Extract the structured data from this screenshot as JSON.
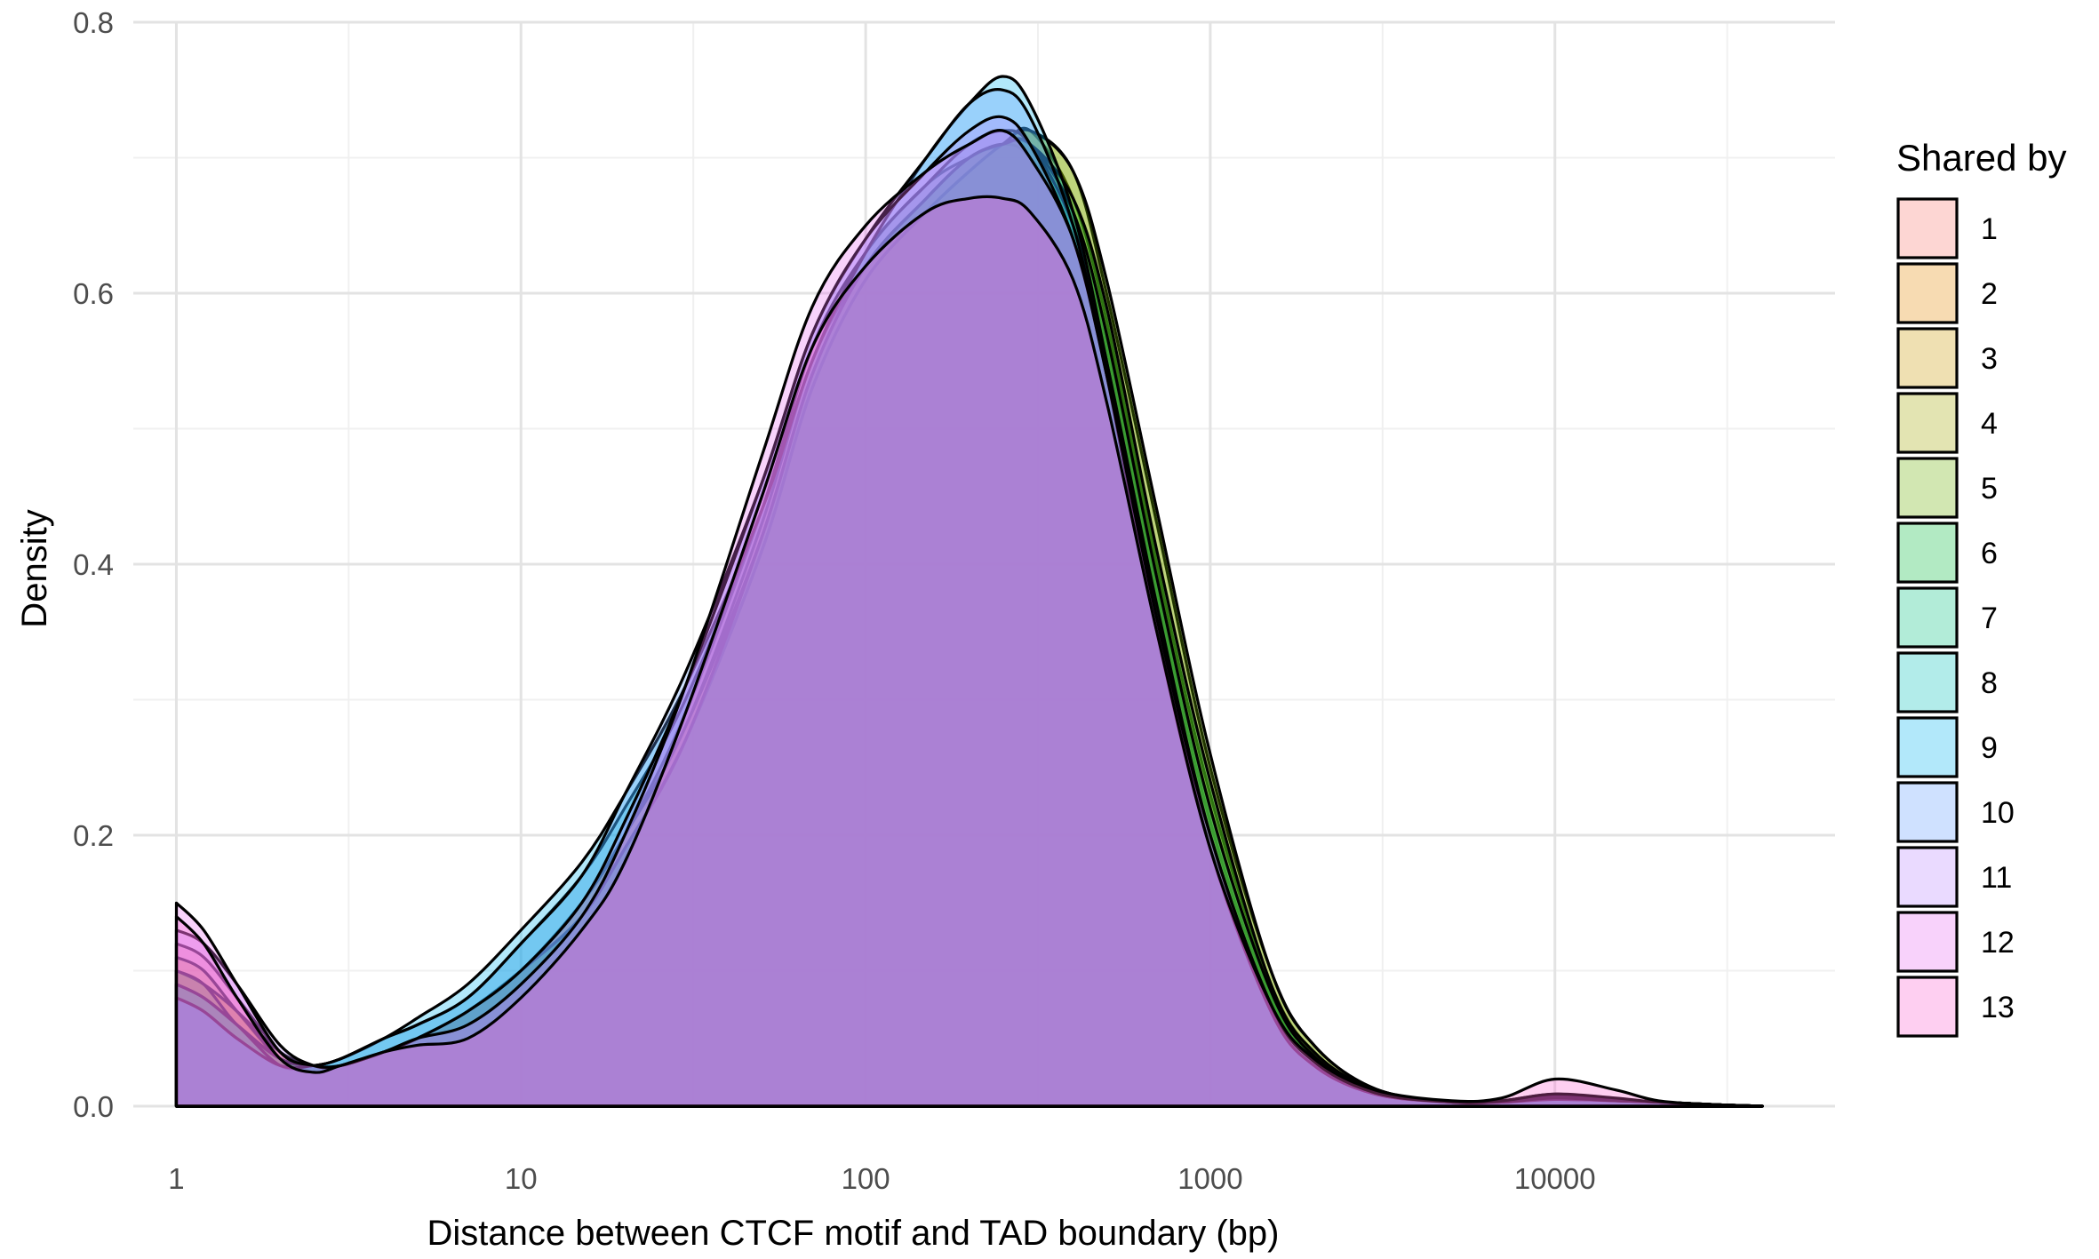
{
  "chart_data": {
    "type": "area",
    "subtype": "density",
    "xlabel": "Distance between CTCF motif and TAD boundary (bp)",
    "ylabel": "Density",
    "x_scale": "log10",
    "xlim": [
      0.75,
      65000
    ],
    "ylim": [
      0,
      0.8
    ],
    "x_ticks": [
      1,
      10,
      100,
      1000,
      10000
    ],
    "x_tick_labels": [
      "1",
      "10",
      "100",
      "1000",
      "10000"
    ],
    "y_ticks": [
      0.0,
      0.2,
      0.4,
      0.6,
      0.8
    ],
    "y_tick_labels": [
      "0.0",
      "0.2",
      "0.4",
      "0.6",
      "0.8"
    ],
    "grid": true,
    "fill_alpha": 0.3,
    "outline_color": "#000000",
    "legend": {
      "title": "Shared by",
      "position": "right"
    },
    "series": [
      {
        "name": "1",
        "color": "#F8766D",
        "x": [
          1,
          1.2,
          1.5,
          2,
          2.5,
          3,
          4,
          5,
          7,
          10,
          15,
          20,
          30,
          50,
          70,
          100,
          150,
          200,
          250,
          300,
          400,
          500,
          700,
          1000,
          1500,
          2000,
          3000,
          5000,
          7000,
          10000,
          15000,
          20000,
          30000,
          40000
        ],
        "y": [
          0.12,
          0.11,
          0.08,
          0.04,
          0.025,
          0.03,
          0.04,
          0.05,
          0.07,
          0.1,
          0.15,
          0.2,
          0.29,
          0.44,
          0.56,
          0.63,
          0.68,
          0.7,
          0.71,
          0.7,
          0.65,
          0.56,
          0.38,
          0.21,
          0.08,
          0.035,
          0.01,
          0.003,
          0.004,
          0.008,
          0.005,
          0.003,
          0.001,
          0.0
        ]
      },
      {
        "name": "2",
        "color": "#E58700",
        "x": [
          1,
          1.2,
          1.5,
          2,
          2.5,
          3,
          4,
          5,
          7,
          10,
          15,
          20,
          30,
          50,
          70,
          100,
          150,
          200,
          250,
          300,
          400,
          500,
          700,
          1000,
          1500,
          2000,
          3000,
          5000,
          7000,
          10000,
          15000,
          20000,
          30000,
          40000
        ],
        "y": [
          0.1,
          0.09,
          0.07,
          0.04,
          0.03,
          0.03,
          0.04,
          0.05,
          0.07,
          0.1,
          0.15,
          0.2,
          0.28,
          0.43,
          0.55,
          0.62,
          0.67,
          0.7,
          0.71,
          0.71,
          0.66,
          0.57,
          0.39,
          0.22,
          0.085,
          0.037,
          0.011,
          0.003,
          0.004,
          0.009,
          0.005,
          0.003,
          0.001,
          0.0
        ]
      },
      {
        "name": "3",
        "color": "#C99800",
        "x": [
          1,
          1.2,
          1.5,
          2,
          2.5,
          3,
          4,
          5,
          7,
          10,
          15,
          20,
          30,
          50,
          70,
          100,
          150,
          200,
          250,
          300,
          400,
          500,
          700,
          1000,
          1500,
          2000,
          3000,
          5000,
          7000,
          10000,
          15000,
          20000,
          30000,
          40000
        ],
        "y": [
          0.11,
          0.1,
          0.07,
          0.035,
          0.03,
          0.03,
          0.04,
          0.05,
          0.07,
          0.1,
          0.15,
          0.2,
          0.28,
          0.42,
          0.54,
          0.62,
          0.67,
          0.7,
          0.71,
          0.72,
          0.67,
          0.58,
          0.4,
          0.23,
          0.09,
          0.04,
          0.012,
          0.003,
          0.004,
          0.008,
          0.005,
          0.003,
          0.001,
          0.0
        ]
      },
      {
        "name": "4",
        "color": "#A3A500",
        "x": [
          1,
          1.2,
          1.5,
          2,
          2.5,
          3,
          4,
          5,
          7,
          10,
          15,
          20,
          30,
          50,
          70,
          100,
          150,
          200,
          250,
          300,
          400,
          500,
          700,
          1000,
          1500,
          2000,
          3000,
          5000,
          7000,
          10000,
          15000,
          20000,
          30000,
          40000
        ],
        "y": [
          0.1,
          0.09,
          0.07,
          0.035,
          0.03,
          0.03,
          0.04,
          0.05,
          0.07,
          0.1,
          0.14,
          0.19,
          0.27,
          0.41,
          0.53,
          0.61,
          0.66,
          0.69,
          0.71,
          0.72,
          0.69,
          0.6,
          0.43,
          0.25,
          0.1,
          0.045,
          0.013,
          0.003,
          0.004,
          0.007,
          0.005,
          0.003,
          0.001,
          0.0
        ]
      },
      {
        "name": "5",
        "color": "#6BB100",
        "x": [
          1,
          1.2,
          1.5,
          2,
          2.5,
          3,
          4,
          5,
          7,
          10,
          15,
          20,
          30,
          50,
          70,
          100,
          150,
          200,
          250,
          300,
          400,
          500,
          700,
          1000,
          1500,
          2000,
          3000,
          5000,
          7000,
          10000,
          15000,
          20000,
          30000,
          40000
        ],
        "y": [
          0.09,
          0.08,
          0.06,
          0.035,
          0.03,
          0.03,
          0.04,
          0.05,
          0.07,
          0.1,
          0.14,
          0.19,
          0.27,
          0.41,
          0.53,
          0.61,
          0.66,
          0.69,
          0.71,
          0.72,
          0.69,
          0.61,
          0.44,
          0.26,
          0.1,
          0.045,
          0.013,
          0.003,
          0.004,
          0.007,
          0.005,
          0.003,
          0.001,
          0.0
        ]
      },
      {
        "name": "6",
        "color": "#00BA38",
        "x": [
          1,
          1.2,
          1.5,
          2,
          2.5,
          3,
          4,
          5,
          7,
          10,
          15,
          20,
          30,
          50,
          70,
          100,
          150,
          200,
          250,
          300,
          400,
          500,
          700,
          1000,
          1500,
          2000,
          3000,
          5000,
          7000,
          10000,
          15000,
          20000,
          30000,
          40000
        ],
        "y": [
          0.1,
          0.09,
          0.06,
          0.035,
          0.03,
          0.03,
          0.04,
          0.05,
          0.07,
          0.1,
          0.14,
          0.19,
          0.27,
          0.42,
          0.54,
          0.62,
          0.67,
          0.7,
          0.71,
          0.71,
          0.67,
          0.59,
          0.41,
          0.24,
          0.09,
          0.04,
          0.012,
          0.003,
          0.004,
          0.007,
          0.005,
          0.003,
          0.001,
          0.0
        ]
      },
      {
        "name": "7",
        "color": "#00BF7D",
        "x": [
          1,
          1.2,
          1.5,
          2,
          2.5,
          3,
          4,
          5,
          7,
          10,
          15,
          20,
          30,
          50,
          70,
          100,
          150,
          200,
          250,
          300,
          400,
          500,
          700,
          1000,
          1500,
          2000,
          3000,
          5000,
          7000,
          10000,
          15000,
          20000,
          30000,
          40000
        ],
        "y": [
          0.09,
          0.08,
          0.06,
          0.035,
          0.03,
          0.03,
          0.04,
          0.05,
          0.07,
          0.1,
          0.14,
          0.19,
          0.27,
          0.42,
          0.54,
          0.62,
          0.67,
          0.7,
          0.71,
          0.71,
          0.66,
          0.57,
          0.39,
          0.22,
          0.085,
          0.037,
          0.011,
          0.003,
          0.004,
          0.006,
          0.004,
          0.003,
          0.001,
          0.0
        ]
      },
      {
        "name": "8",
        "color": "#00C0B8",
        "x": [
          1,
          1.2,
          1.5,
          2,
          2.5,
          3,
          4,
          5,
          7,
          10,
          15,
          20,
          30,
          50,
          70,
          100,
          150,
          200,
          250,
          300,
          400,
          500,
          700,
          1000,
          1500,
          2000,
          3000,
          5000,
          7000,
          10000,
          15000,
          20000,
          30000,
          40000
        ],
        "y": [
          0.09,
          0.08,
          0.06,
          0.03,
          0.03,
          0.035,
          0.05,
          0.06,
          0.08,
          0.12,
          0.17,
          0.22,
          0.3,
          0.44,
          0.55,
          0.63,
          0.68,
          0.71,
          0.72,
          0.71,
          0.65,
          0.55,
          0.37,
          0.2,
          0.075,
          0.033,
          0.01,
          0.003,
          0.003,
          0.006,
          0.004,
          0.003,
          0.001,
          0.0
        ]
      },
      {
        "name": "9",
        "color": "#00B4EF",
        "x": [
          1,
          1.2,
          1.5,
          2,
          2.5,
          3,
          4,
          5,
          7,
          10,
          15,
          20,
          30,
          50,
          70,
          100,
          150,
          200,
          250,
          300,
          400,
          500,
          700,
          1000,
          1500,
          2000,
          3000,
          5000,
          7000,
          10000,
          15000,
          20000,
          30000,
          40000
        ],
        "y": [
          0.08,
          0.07,
          0.05,
          0.03,
          0.03,
          0.035,
          0.05,
          0.065,
          0.09,
          0.13,
          0.18,
          0.23,
          0.31,
          0.44,
          0.55,
          0.63,
          0.7,
          0.74,
          0.76,
          0.74,
          0.66,
          0.55,
          0.36,
          0.19,
          0.07,
          0.03,
          0.009,
          0.003,
          0.003,
          0.005,
          0.004,
          0.003,
          0.001,
          0.0
        ]
      },
      {
        "name": "10",
        "color": "#619CFF",
        "x": [
          1,
          1.2,
          1.5,
          2,
          2.5,
          3,
          4,
          5,
          7,
          10,
          15,
          20,
          30,
          50,
          70,
          100,
          150,
          200,
          250,
          300,
          400,
          500,
          700,
          1000,
          1500,
          2000,
          3000,
          5000,
          7000,
          10000,
          15000,
          20000,
          30000,
          40000
        ],
        "y": [
          0.08,
          0.07,
          0.05,
          0.03,
          0.03,
          0.035,
          0.05,
          0.06,
          0.08,
          0.12,
          0.17,
          0.23,
          0.32,
          0.46,
          0.57,
          0.64,
          0.7,
          0.74,
          0.75,
          0.73,
          0.65,
          0.54,
          0.35,
          0.19,
          0.07,
          0.03,
          0.009,
          0.003,
          0.003,
          0.005,
          0.004,
          0.003,
          0.001,
          0.0
        ]
      },
      {
        "name": "11",
        "color": "#B983FF",
        "x": [
          1,
          1.2,
          1.5,
          2,
          2.5,
          3,
          4,
          5,
          7,
          10,
          15,
          20,
          30,
          50,
          70,
          100,
          150,
          200,
          250,
          300,
          400,
          500,
          700,
          1000,
          1500,
          2000,
          3000,
          5000,
          7000,
          10000,
          15000,
          20000,
          30000,
          40000
        ],
        "y": [
          0.13,
          0.12,
          0.09,
          0.045,
          0.03,
          0.03,
          0.04,
          0.05,
          0.07,
          0.1,
          0.15,
          0.21,
          0.31,
          0.46,
          0.57,
          0.64,
          0.69,
          0.72,
          0.73,
          0.71,
          0.64,
          0.54,
          0.36,
          0.2,
          0.075,
          0.033,
          0.01,
          0.003,
          0.003,
          0.006,
          0.004,
          0.003,
          0.001,
          0.0
        ]
      },
      {
        "name": "12",
        "color": "#E76BF3",
        "x": [
          1,
          1.2,
          1.5,
          2,
          2.5,
          3,
          4,
          5,
          7,
          10,
          15,
          20,
          30,
          50,
          70,
          100,
          150,
          200,
          250,
          300,
          400,
          500,
          700,
          1000,
          1500,
          2000,
          3000,
          5000,
          7000,
          10000,
          15000,
          20000,
          30000,
          40000
        ],
        "y": [
          0.15,
          0.13,
          0.09,
          0.04,
          0.03,
          0.03,
          0.04,
          0.05,
          0.06,
          0.09,
          0.14,
          0.2,
          0.31,
          0.48,
          0.59,
          0.65,
          0.69,
          0.71,
          0.72,
          0.7,
          0.64,
          0.54,
          0.36,
          0.2,
          0.075,
          0.033,
          0.01,
          0.003,
          0.004,
          0.009,
          0.006,
          0.003,
          0.001,
          0.0
        ]
      },
      {
        "name": "13",
        "color": "#FD61D1",
        "x": [
          1,
          1.2,
          1.5,
          2,
          2.5,
          3,
          4,
          5,
          7,
          10,
          15,
          20,
          30,
          50,
          70,
          100,
          150,
          200,
          250,
          300,
          400,
          500,
          700,
          1000,
          1500,
          2000,
          3000,
          5000,
          7000,
          10000,
          15000,
          20000,
          30000,
          40000
        ],
        "y": [
          0.14,
          0.12,
          0.08,
          0.035,
          0.025,
          0.03,
          0.04,
          0.045,
          0.05,
          0.08,
          0.13,
          0.18,
          0.29,
          0.45,
          0.56,
          0.62,
          0.66,
          0.67,
          0.67,
          0.66,
          0.61,
          0.52,
          0.35,
          0.19,
          0.075,
          0.035,
          0.012,
          0.004,
          0.006,
          0.02,
          0.012,
          0.004,
          0.001,
          0.0
        ]
      }
    ]
  }
}
